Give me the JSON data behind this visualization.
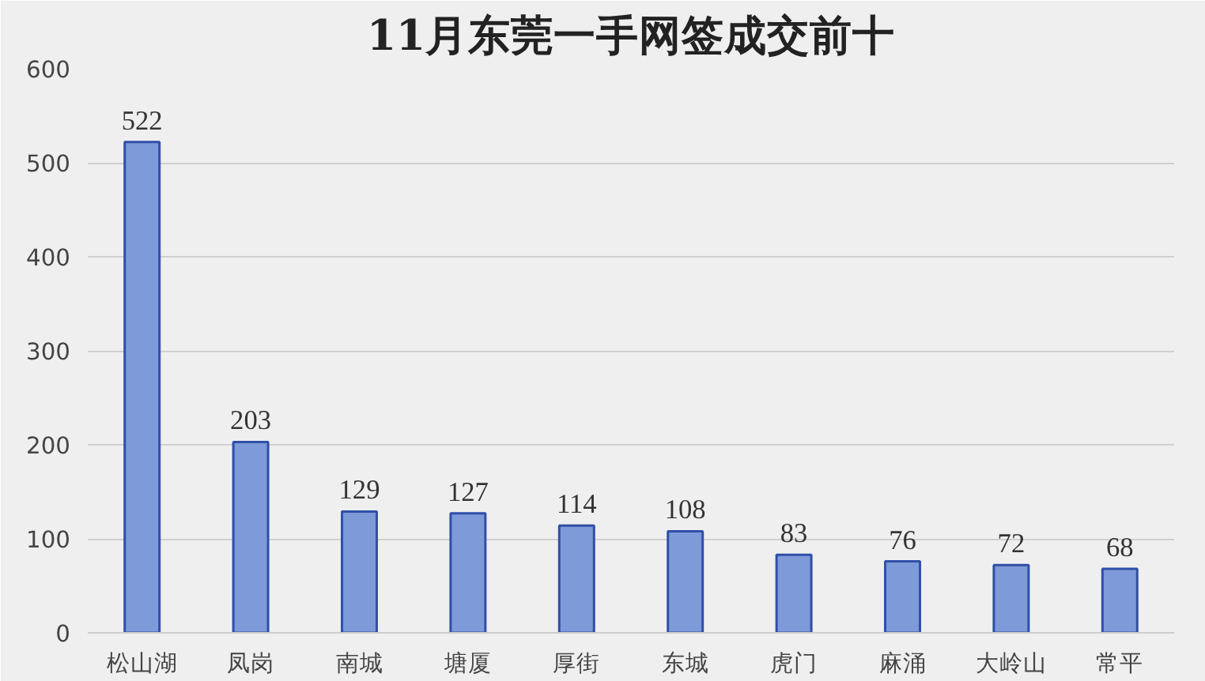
{
  "chart_data": {
    "type": "bar",
    "title": "11月东莞一手网签成交前十",
    "categories": [
      "松山湖",
      "凤岗",
      "南城",
      "塘厦",
      "厚街",
      "东城",
      "虎门",
      "麻涌",
      "大岭山",
      "常平"
    ],
    "values": [
      522,
      203,
      129,
      127,
      114,
      108,
      83,
      76,
      72,
      68
    ],
    "color": "#7f9ad8",
    "ylim": [
      0,
      600
    ],
    "yticks": [
      0,
      100,
      200,
      300,
      400,
      500,
      600
    ],
    "grid": "y",
    "data_labels": true
  }
}
